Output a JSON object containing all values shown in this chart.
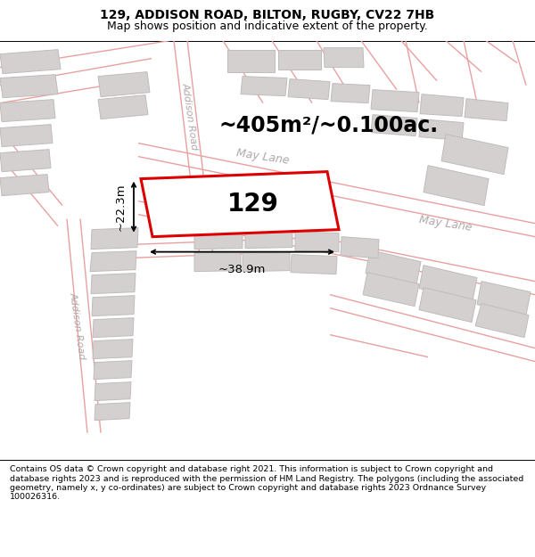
{
  "title": "129, ADDISON ROAD, BILTON, RUGBY, CV22 7HB",
  "subtitle": "Map shows position and indicative extent of the property.",
  "footer": "Contains OS data © Crown copyright and database right 2021. This information is subject to Crown copyright and database rights 2023 and is reproduced with the permission of HM Land Registry. The polygons (including the associated geometry, namely x, y co-ordinates) are subject to Crown copyright and database rights 2023 Ordnance Survey 100026316.",
  "map_bg": "#f7f3f3",
  "road_line_color": "#e8a0a0",
  "building_fill": "#d4d0d0",
  "building_edge": "#c0bcbc",
  "highlight_fill": "#ffffff",
  "highlight_edge": "#dd0000",
  "highlight_lw": 2.2,
  "area_label": "~405m²/~0.100ac.",
  "number_label": "129",
  "width_label": "~38.9m",
  "height_label": "~22.3m",
  "road_label_addison_upper": "Addison Road",
  "road_label_maylane_upper": "May Lane",
  "road_label_maylane_lower": "May Lane",
  "road_label_addison_lower": "Addison Road",
  "title_fontsize": 10,
  "subtitle_fontsize": 9,
  "footer_fontsize": 6.8,
  "area_fontsize": 17,
  "number_fontsize": 20,
  "dim_fontsize": 9.5
}
